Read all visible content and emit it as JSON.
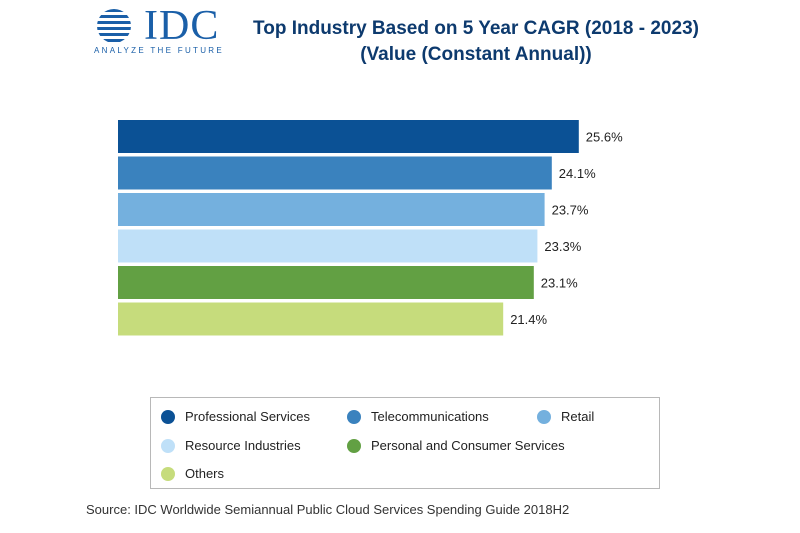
{
  "logo": {
    "wordmark": "IDC",
    "tagline": "ANALYZE THE FUTURE",
    "color": "#1a5fa8"
  },
  "title": {
    "line1": "Top Industry Based on 5 Year CAGR (2018 - 2023)",
    "line2": "(Value (Constant Annual))"
  },
  "chart_data": {
    "type": "bar",
    "orientation": "horizontal",
    "categories": [
      "Professional Services",
      "Telecommunications",
      "Retail",
      "Resource Industries",
      "Personal and Consumer Services",
      "Others"
    ],
    "values": [
      25.6,
      24.1,
      23.7,
      23.3,
      23.1,
      21.4
    ],
    "value_labels": [
      "25.6%",
      "24.1%",
      "23.7%",
      "23.3%",
      "23.1%",
      "21.4%"
    ],
    "colors": [
      "#0b5195",
      "#3a82be",
      "#74b0de",
      "#bfe0f8",
      "#62a043",
      "#c6dc7c"
    ],
    "unit": "%",
    "grid": false,
    "legend_placement": "bottom"
  },
  "legend": {
    "items": [
      {
        "label": "Professional Services",
        "color": "#0b5195"
      },
      {
        "label": "Telecommunications",
        "color": "#3a82be"
      },
      {
        "label": "Retail",
        "color": "#74b0de"
      },
      {
        "label": "Resource Industries",
        "color": "#bfe0f8"
      },
      {
        "label": "Personal and Consumer Services",
        "color": "#62a043"
      },
      {
        "label": "Others",
        "color": "#c6dc7c"
      }
    ]
  },
  "source": "Source: IDC Worldwide Semiannual Public Cloud Services Spending Guide 2018H2"
}
